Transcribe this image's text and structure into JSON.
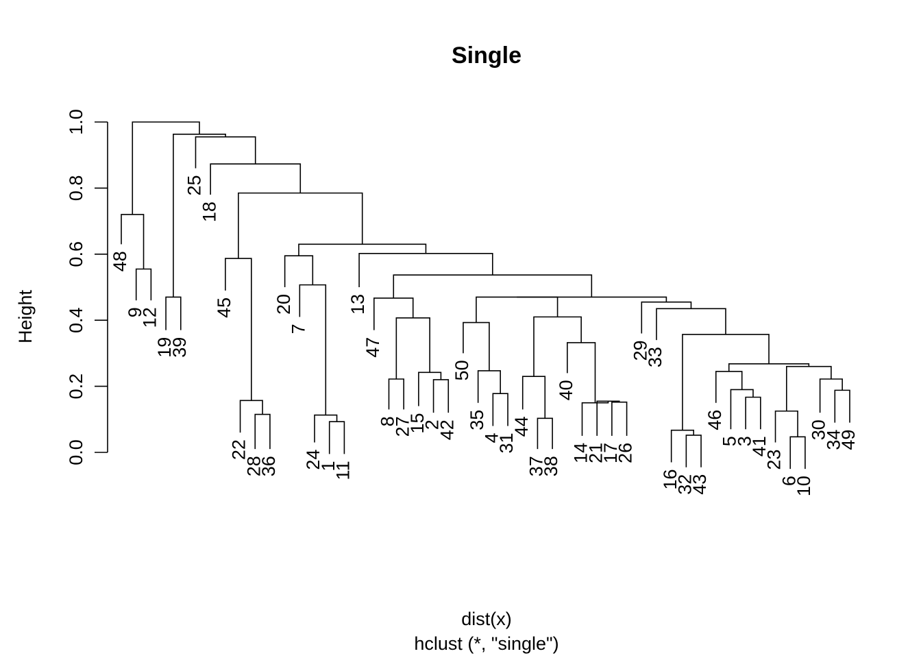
{
  "chart_data": {
    "type": "dendrogram",
    "title": "Single",
    "xlabel": "dist(x)",
    "sub": "hclust (*, \"single\")",
    "ylabel": "Height",
    "ylim": [
      0,
      1.0
    ],
    "yticks": [
      "0.0",
      "0.2",
      "0.4",
      "0.6",
      "0.8",
      "1.0"
    ],
    "leaves": [
      {
        "label": "48",
        "h": 0.63
      },
      {
        "label": "9",
        "h": 0.46
      },
      {
        "label": "12",
        "h": 0.46
      },
      {
        "label": "19",
        "h": 0.37
      },
      {
        "label": "39",
        "h": 0.37
      },
      {
        "label": "25",
        "h": 0.86
      },
      {
        "label": "18",
        "h": 0.78
      },
      {
        "label": "45",
        "h": 0.49
      },
      {
        "label": "22",
        "h": 0.06
      },
      {
        "label": "28",
        "h": 0.01
      },
      {
        "label": "36",
        "h": 0.01
      },
      {
        "label": "20",
        "h": 0.5
      },
      {
        "label": "7",
        "h": 0.41
      },
      {
        "label": "24",
        "h": 0.03
      },
      {
        "label": "1",
        "h": -0.005
      },
      {
        "label": "11",
        "h": -0.005
      },
      {
        "label": "13",
        "h": 0.5
      },
      {
        "label": "47",
        "h": 0.37
      },
      {
        "label": "8",
        "h": 0.13
      },
      {
        "label": "27",
        "h": 0.13
      },
      {
        "label": "15",
        "h": 0.14
      },
      {
        "label": "2",
        "h": 0.12
      },
      {
        "label": "42",
        "h": 0.12
      },
      {
        "label": "50",
        "h": 0.3
      },
      {
        "label": "35",
        "h": 0.15
      },
      {
        "label": "4",
        "h": 0.08
      },
      {
        "label": "31",
        "h": 0.08
      },
      {
        "label": "44",
        "h": 0.13
      },
      {
        "label": "37",
        "h": 0.01
      },
      {
        "label": "38",
        "h": 0.01
      },
      {
        "label": "40",
        "h": 0.24
      },
      {
        "label": "14",
        "h": 0.05
      },
      {
        "label": "21",
        "h": 0.05
      },
      {
        "label": "17",
        "h": 0.05
      },
      {
        "label": "26",
        "h": 0.05
      },
      {
        "label": "29",
        "h": 0.36
      },
      {
        "label": "33",
        "h": 0.34
      },
      {
        "label": "16",
        "h": -0.03
      },
      {
        "label": "32",
        "h": -0.045
      },
      {
        "label": "43",
        "h": -0.045
      },
      {
        "label": "46",
        "h": 0.15
      },
      {
        "label": "5",
        "h": 0.07
      },
      {
        "label": "3",
        "h": 0.07
      },
      {
        "label": "41",
        "h": 0.07
      },
      {
        "label": "23",
        "h": 0.03
      },
      {
        "label": "6",
        "h": -0.05
      },
      {
        "label": "10",
        "h": -0.05
      },
      {
        "label": "30",
        "h": 0.12
      },
      {
        "label": "34",
        "h": 0.09
      },
      {
        "label": "49",
        "h": 0.09
      }
    ],
    "merges": [
      {
        "left": "L:9",
        "right": "L:12",
        "h": 0.555
      },
      {
        "left": "L:48",
        "right": "M:0",
        "h": 0.72
      },
      {
        "left": "L:19",
        "right": "L:39",
        "h": 0.47
      },
      {
        "left": "L:28",
        "right": "L:36",
        "h": 0.115
      },
      {
        "left": "L:22",
        "right": "M:3",
        "h": 0.157
      },
      {
        "left": "L:45",
        "right": "M:4",
        "h": 0.587
      },
      {
        "left": "L:1",
        "right": "L:11",
        "h": 0.093
      },
      {
        "left": "L:24",
        "right": "M:6",
        "h": 0.113
      },
      {
        "left": "L:7",
        "right": "M:7",
        "h": 0.507
      },
      {
        "left": "L:20",
        "right": "M:8",
        "h": 0.595
      },
      {
        "left": "L:2",
        "right": "L:42",
        "h": 0.22
      },
      {
        "left": "L:15",
        "right": "M:10",
        "h": 0.242
      },
      {
        "left": "L:8",
        "right": "L:27",
        "h": 0.222
      },
      {
        "left": "M:12",
        "right": "M:11",
        "h": 0.407
      },
      {
        "left": "L:47",
        "right": "M:13",
        "h": 0.467
      },
      {
        "left": "L:4",
        "right": "L:31",
        "h": 0.178
      },
      {
        "left": "L:35",
        "right": "M:15",
        "h": 0.247
      },
      {
        "left": "L:50",
        "right": "M:16",
        "h": 0.393
      },
      {
        "left": "L:37",
        "right": "L:38",
        "h": 0.103
      },
      {
        "left": "L:44",
        "right": "M:18",
        "h": 0.23
      },
      {
        "left": "L:17",
        "right": "L:26",
        "h": 0.152
      },
      {
        "left": "L:21",
        "right": "M:20",
        "h": 0.155
      },
      {
        "left": "L:14",
        "right": "M:21",
        "h": 0.15
      },
      {
        "left": "L:40",
        "right": "M:22",
        "h": 0.332
      },
      {
        "left": "M:19",
        "right": "M:23",
        "h": 0.41
      },
      {
        "left": "M:17",
        "right": "M:24",
        "h": 0.47
      },
      {
        "left": "L:32",
        "right": "L:43",
        "h": 0.052
      },
      {
        "left": "L:16",
        "right": "M:26",
        "h": 0.067
      },
      {
        "left": "L:3",
        "right": "L:41",
        "h": 0.167
      },
      {
        "left": "L:5",
        "right": "M:28",
        "h": 0.19
      },
      {
        "left": "L:46",
        "right": "M:29",
        "h": 0.245
      },
      {
        "left": "L:6",
        "right": "L:10",
        "h": 0.047
      },
      {
        "left": "L:23",
        "right": "M:31",
        "h": 0.125
      },
      {
        "left": "L:34",
        "right": "L:49",
        "h": 0.188
      },
      {
        "left": "L:30",
        "right": "M:33",
        "h": 0.222
      },
      {
        "left": "M:32",
        "right": "M:34",
        "h": 0.26
      },
      {
        "left": "M:30",
        "right": "M:35",
        "h": 0.268
      },
      {
        "left": "M:27",
        "right": "M:36",
        "h": 0.357
      },
      {
        "left": "L:33",
        "right": "M:37",
        "h": 0.435
      },
      {
        "left": "L:29",
        "right": "M:38",
        "h": 0.455
      },
      {
        "left": "M:25",
        "right": "M:39",
        "h": 0.47
      },
      {
        "left": "M:14",
        "right": "M:40",
        "h": 0.537
      },
      {
        "left": "L:13",
        "right": "M:41",
        "h": 0.602
      },
      {
        "left": "M:9",
        "right": "M:42",
        "h": 0.63
      },
      {
        "left": "M:5",
        "right": "M:43",
        "h": 0.785
      },
      {
        "left": "L:18",
        "right": "M:44",
        "h": 0.873
      },
      {
        "left": "L:25",
        "right": "M:45",
        "h": 0.955
      },
      {
        "left": "M:2",
        "right": "M:46",
        "h": 0.963
      },
      {
        "left": "M:1",
        "right": "M:47",
        "h": 1.0
      }
    ]
  }
}
